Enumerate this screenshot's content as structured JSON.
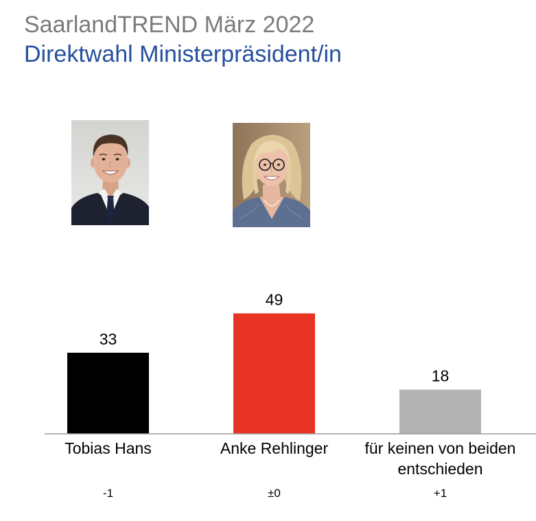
{
  "colors": {
    "title": "#7b7b7b",
    "subtitle": "#244f9e",
    "baseline": "#9a9a9a"
  },
  "chart_data": {
    "type": "bar",
    "title": "SaarlandTREND März 2022",
    "subtitle": "Direktwahl Ministerpräsident/in",
    "categories": [
      "Tobias Hans",
      "Anke Rehlinger",
      "für keinen von beiden entschieden"
    ],
    "values": [
      33,
      49,
      18
    ],
    "changes": [
      "-1",
      "±0",
      "+1"
    ],
    "colors": [
      "#000000",
      "#e63323",
      "#b3b3b3"
    ],
    "grid": false,
    "legend": "none"
  }
}
